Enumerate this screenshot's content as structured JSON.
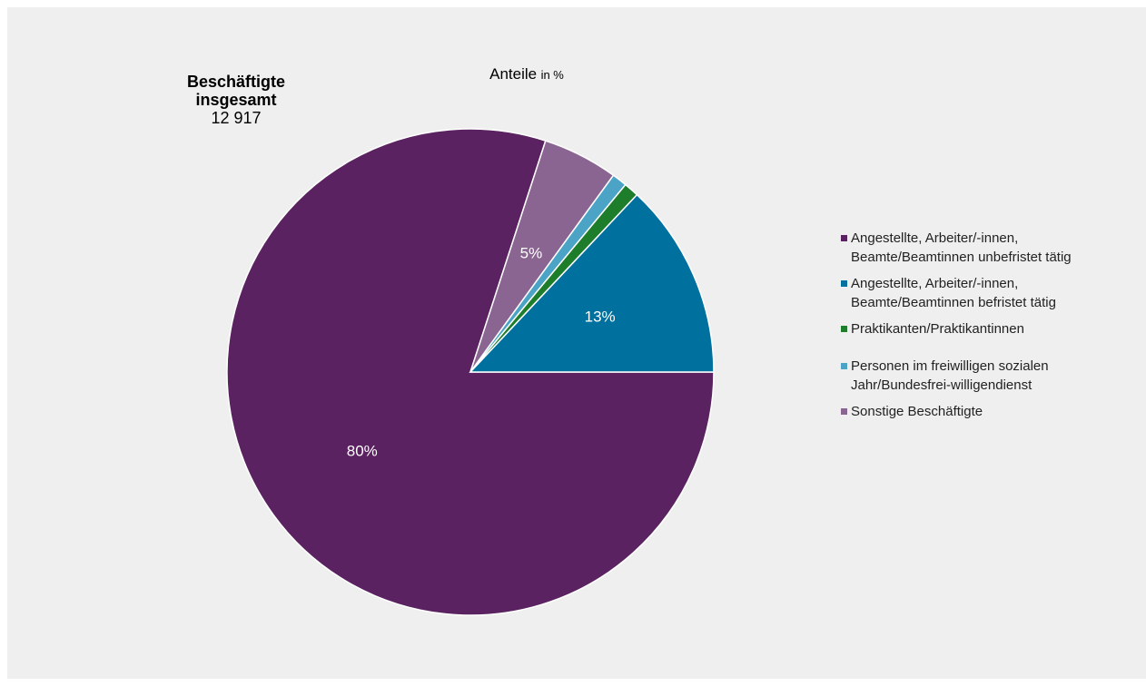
{
  "chart_data": {
    "type": "pie",
    "title": "Anteile",
    "unit": "in %",
    "total_label": "Beschäftigte insgesamt",
    "total_value": "12 917",
    "start_angle_deg": 90,
    "direction": "clockwise",
    "slices": [
      {
        "name": "Angestellte, Arbeiter/-innen, Beamte/Beamtinnen unbefristet tätig",
        "value": 80,
        "label": "80%",
        "color": "#5a2260"
      },
      {
        "name": "Sonstige Beschäftigte",
        "value": 5,
        "label": "5%",
        "color": "#8a6591"
      },
      {
        "name": "Personen im freiwilligen sozialen Jahr/Bundesfrei-willigendienst",
        "value": 1,
        "label": "",
        "color": "#4ba3c6"
      },
      {
        "name": "Praktikanten/Praktikantinnen",
        "value": 1,
        "label": "",
        "color": "#1e7d2a"
      },
      {
        "name": "Angestellte, Arbeiter/-innen, Beamte/Beamtinnen befristet tätig",
        "value": 13,
        "label": "13%",
        "color": "#00709f"
      }
    ],
    "legend": [
      {
        "name": "Angestellte, Arbeiter/-innen, Beamte/Beamtinnen unbefristet tätig",
        "lines": [
          "Angestellte, Arbeiter/-innen,",
          "Beamte/Beamtinnen unbefristet tätig"
        ],
        "color": "#5a2260"
      },
      {
        "name": "Angestellte, Arbeiter/-innen, Beamte/Beamtinnen befristet tätig",
        "lines": [
          "Angestellte, Arbeiter/-innen,",
          "Beamte/Beamtinnen befristet tätig"
        ],
        "color": "#00709f"
      },
      {
        "name": "Praktikanten/Praktikantinnen",
        "lines": [
          "Praktikanten/Praktikantinnen"
        ],
        "color": "#1e7d2a"
      },
      {
        "name": "Personen im freiwilligen sozialen Jahr/Bundesfrei-willigendienst",
        "lines": [
          "Personen im freiwilligen sozialen",
          "Jahr/Bundesfrei-willigendienst"
        ],
        "color": "#4ba3c6"
      },
      {
        "name": "Sonstige Beschäftigte",
        "lines": [
          "Sonstige Beschäftigte"
        ],
        "color": "#8a6591"
      }
    ],
    "legend_position": "right"
  }
}
